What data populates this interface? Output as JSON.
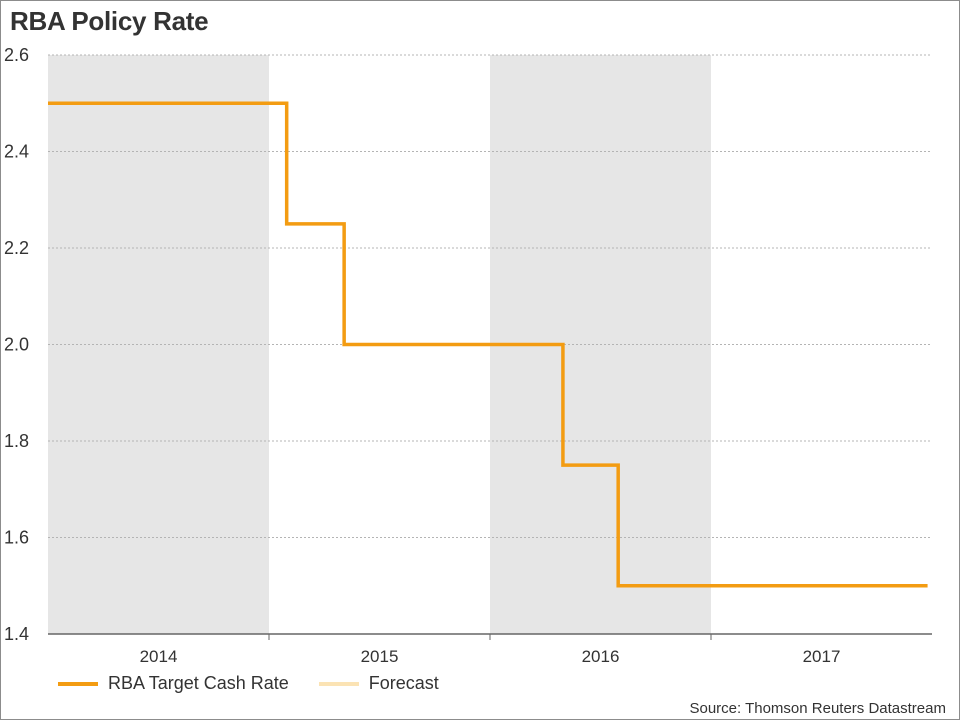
{
  "title": "RBA Policy Rate",
  "source": "Source: Thomson Reuters Datastream",
  "colors": {
    "line": "#f39c12",
    "forecast": "#fbe3b4",
    "band": "#e6e6e6",
    "grid": "#b4b4b4",
    "axis": "#666666",
    "text": "#333333"
  },
  "chart_data": {
    "type": "line",
    "step": true,
    "title": "RBA Policy Rate",
    "xlabel": "",
    "ylabel": "",
    "xlim": [
      2014.0,
      2018.0
    ],
    "ylim": [
      1.4,
      2.6
    ],
    "yticks": [
      1.4,
      1.6,
      1.8,
      2.0,
      2.2,
      2.4,
      2.6
    ],
    "ytick_labels": [
      "1.4",
      "1.6",
      "1.8",
      "2.0",
      "2.2",
      "2.4",
      "2.6"
    ],
    "year_bounds": [
      2014.0,
      2015.0,
      2016.0,
      2017.0,
      2018.0
    ],
    "year_labels": [
      "2014",
      "2015",
      "2016",
      "2017"
    ],
    "shaded_years": [
      "2014",
      "2016"
    ],
    "series": [
      {
        "name": "RBA Target Cash Rate",
        "points": [
          {
            "x": 2014.0,
            "y": 2.5
          },
          {
            "x": 2015.08,
            "y": 2.25
          },
          {
            "x": 2015.34,
            "y": 2.0
          },
          {
            "x": 2016.33,
            "y": 1.75
          },
          {
            "x": 2016.58,
            "y": 1.5
          },
          {
            "x": 2017.98,
            "y": 1.5
          }
        ]
      },
      {
        "name": "Forecast",
        "points": []
      }
    ],
    "legend": [
      "RBA Target Cash Rate",
      "Forecast"
    ],
    "legend_position": "bottom-left"
  }
}
